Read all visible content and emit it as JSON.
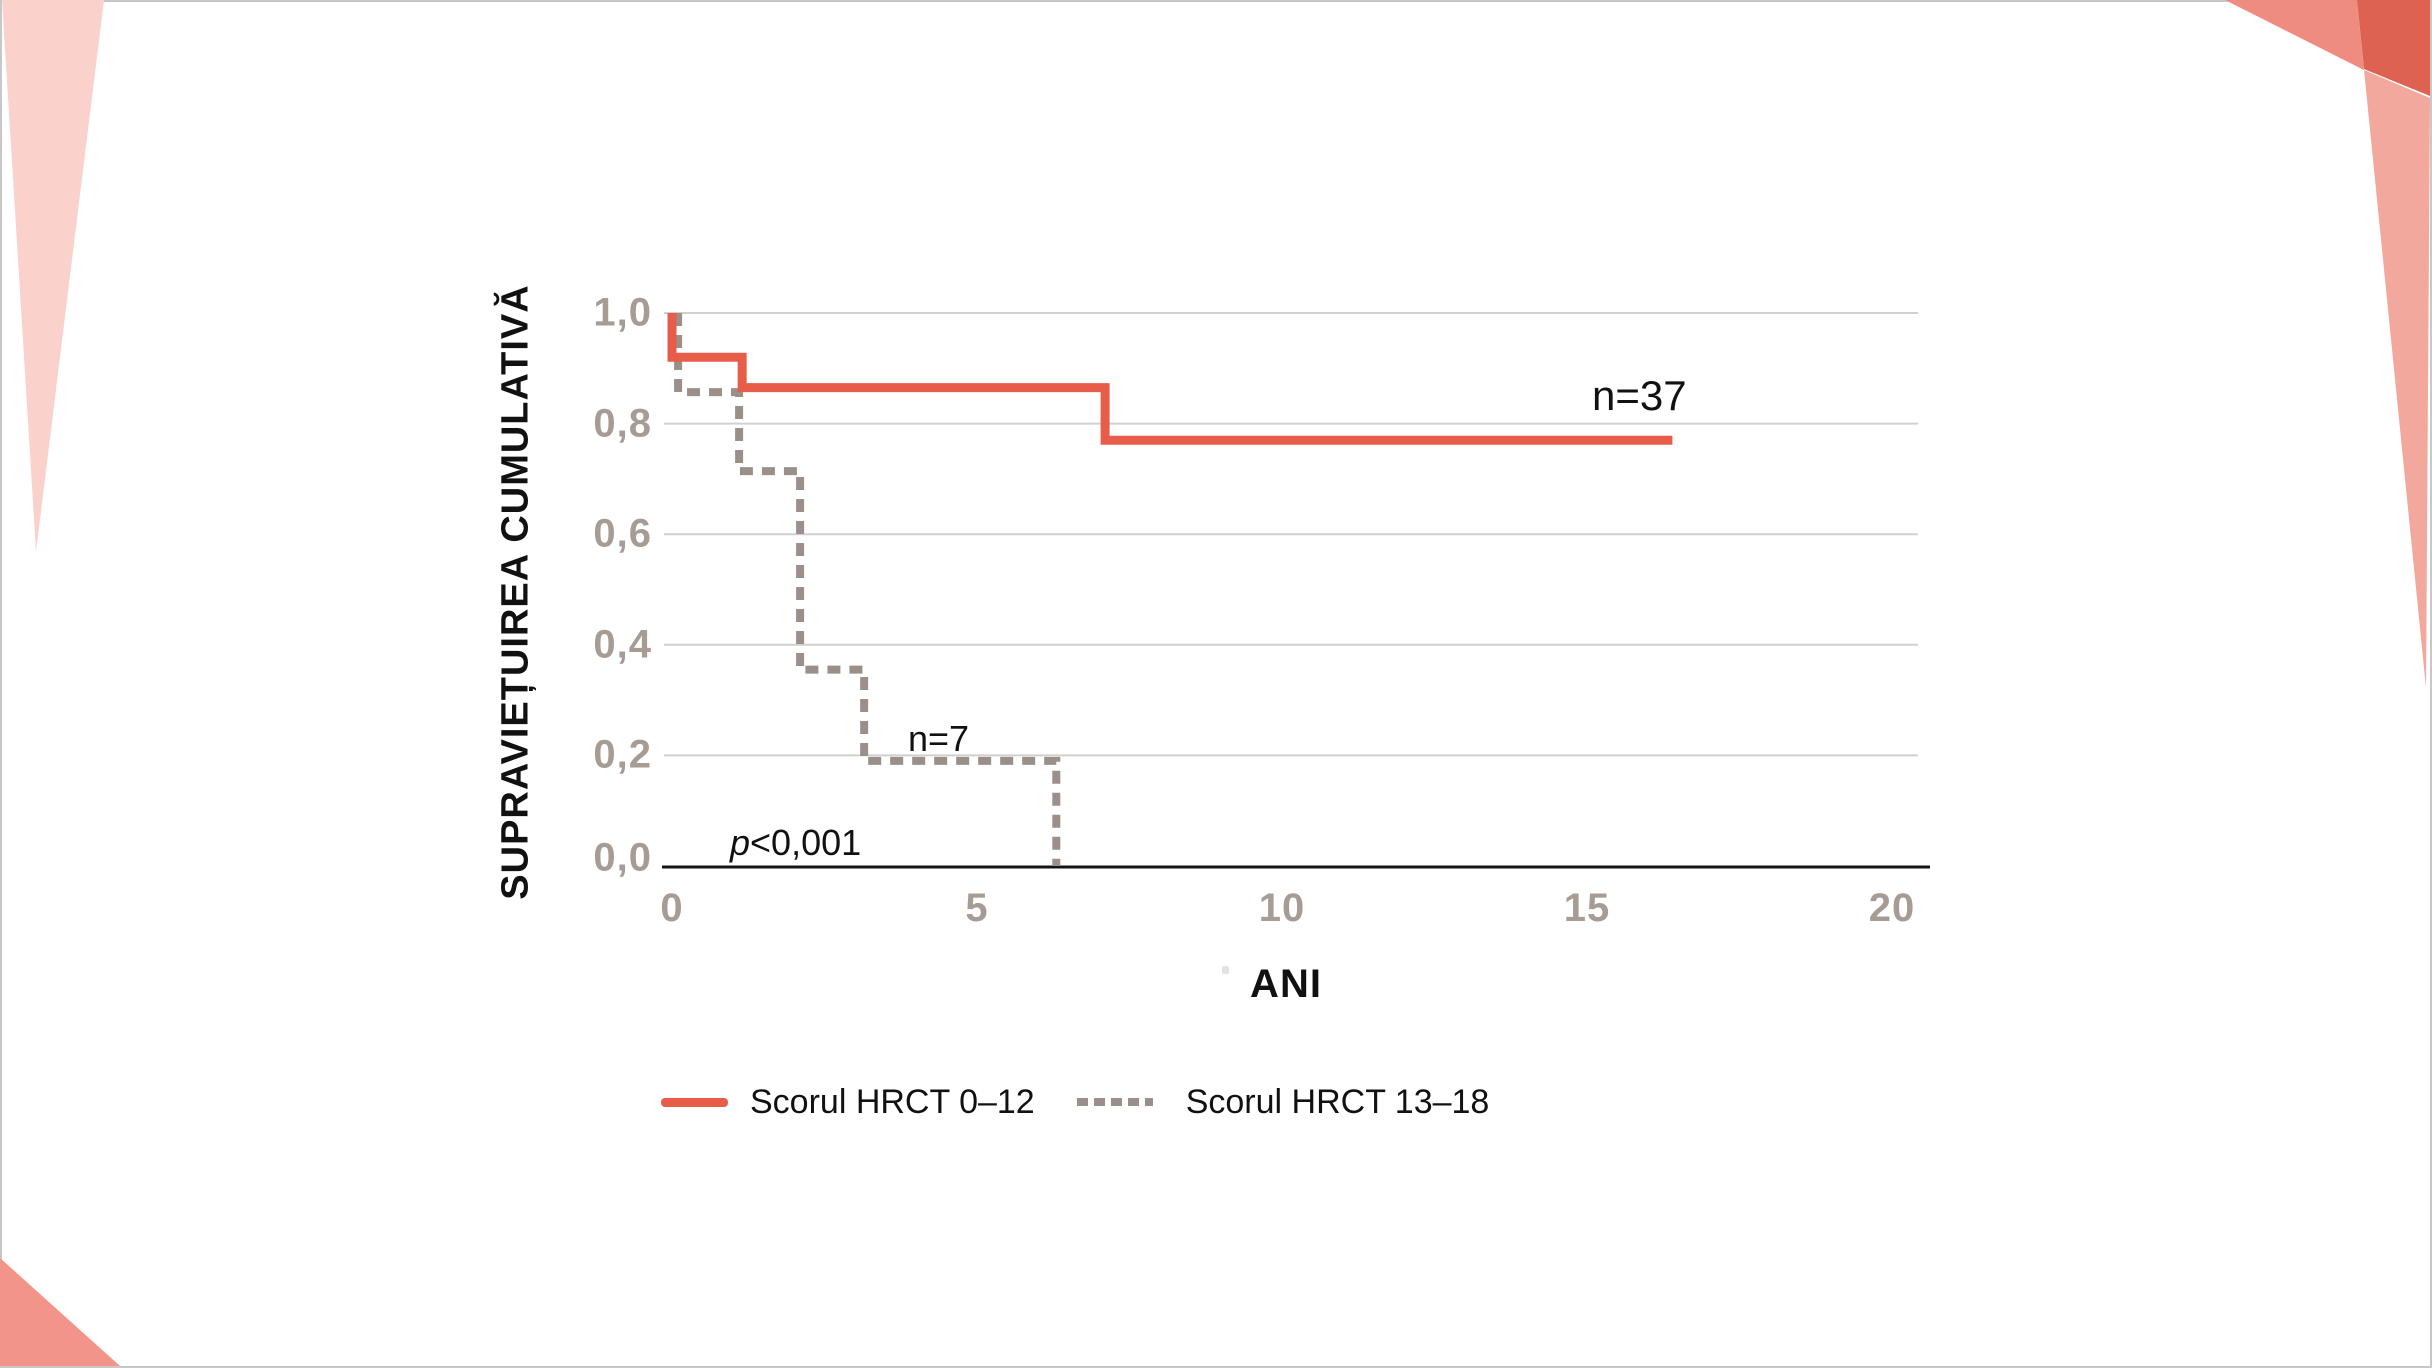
{
  "colors": {
    "accent_red": "#e85d49",
    "dash_gray": "#9a9089",
    "tick_gray": "#a69c94",
    "gridline": "#d2d0ce",
    "axis_black": "#141414",
    "frame_border": "#c8c8c8",
    "deco_light_pink": "#fbd2cb",
    "deco_salmon": "#ee8d7f",
    "deco_dark_red": "#dd6252",
    "deco_right_wedge": "#f3a89e",
    "deco_bottom_left": "#f29489"
  },
  "chart_data": {
    "type": "line",
    "subtype": "kaplan-meier-step-survival",
    "title": "",
    "xlabel": "ANI",
    "ylabel": "SUPRAVIEȚUIREA CUMULATIVĂ",
    "xlim": [
      0,
      20
    ],
    "ylim": [
      0.0,
      1.0
    ],
    "grid": "horizontal-only",
    "legend_position": "bottom",
    "xticks": [
      {
        "v": 0,
        "label": "0"
      },
      {
        "v": 5,
        "label": "5"
      },
      {
        "v": 10,
        "label": "10"
      },
      {
        "v": 15,
        "label": "15"
      },
      {
        "v": 20,
        "label": "20"
      }
    ],
    "yticks": [
      {
        "v": 1.0,
        "label": "1,0"
      },
      {
        "v": 0.8,
        "label": "0,8"
      },
      {
        "v": 0.6,
        "label": "0,6"
      },
      {
        "v": 0.4,
        "label": "0,4"
      },
      {
        "v": 0.2,
        "label": "0,2"
      },
      {
        "v": 0.0,
        "label": "0,0"
      }
    ],
    "series": [
      {
        "name": "Scorul HRCT 0–12",
        "style": "solid",
        "color": "#e85d49",
        "group_size_label": "n=37",
        "start": [
          0.0,
          1.0
        ],
        "steps": [
          [
            0.0,
            0.92
          ],
          [
            1.15,
            0.865
          ],
          [
            7.1,
            0.77
          ]
        ],
        "end_time": 16.4
      },
      {
        "name": "Scorul HRCT 13–18",
        "style": "dashed",
        "color": "#9a9089",
        "group_size_label": "n=7",
        "start": [
          0.1,
          1.0
        ],
        "steps": [
          [
            0.1,
            0.857
          ],
          [
            1.1,
            0.714
          ],
          [
            2.1,
            0.355
          ],
          [
            3.15,
            0.19
          ],
          [
            6.3,
            0.0
          ]
        ],
        "end_time": 6.3
      }
    ],
    "annotations": {
      "p_italic": "p",
      "p_value": "<0,001"
    }
  }
}
